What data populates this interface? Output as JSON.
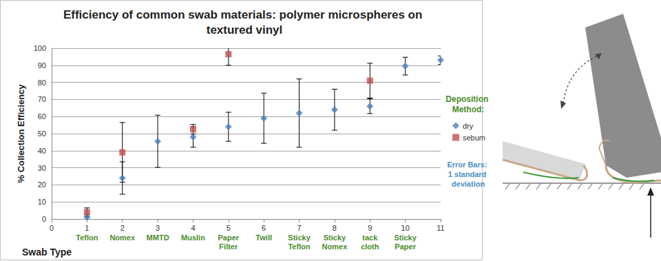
{
  "chart_data": {
    "type": "scatter",
    "title": "Efficiency of common swab materials: polymer microspheres on textured vinyl",
    "x_label": "Swab Type",
    "y_label": "% Collection Efficiency",
    "x": [
      1,
      2,
      3,
      4,
      5,
      6,
      7,
      8,
      9,
      10,
      11
    ],
    "swab_types": [
      "Teflon",
      "Nomex",
      "MMTD",
      "Muslin",
      "Paper Filter",
      "Twill",
      "Sticky Teflon",
      "Sticky Nomex",
      "tack cloth",
      "Sticky Paper",
      null
    ],
    "series": [
      {
        "name": "dry",
        "color": "#4a7ebb",
        "marker": "diamond",
        "values": [
          1,
          24,
          45.5,
          48,
          54,
          59,
          62,
          64,
          66,
          89.5,
          93
        ],
        "errors": [
          1.5,
          9.5,
          15.3,
          6,
          8.5,
          14.7,
          20,
          12,
          4.3,
          5.2,
          2.5
        ]
      },
      {
        "name": "sebum",
        "color": "#c0504d",
        "marker": "square",
        "values": [
          4,
          39,
          null,
          52.5,
          96.5,
          null,
          null,
          null,
          81,
          null,
          null
        ],
        "errors": [
          2.5,
          17.5,
          null,
          2.8,
          6.5,
          null,
          null,
          null,
          10.2,
          null,
          null
        ]
      }
    ],
    "xlim": [
      0,
      11
    ],
    "xticks": [
      0,
      1,
      2,
      3,
      4,
      5,
      6,
      7,
      8,
      9,
      10,
      11
    ],
    "ylim": [
      0,
      100
    ],
    "yticks": [
      0,
      10,
      20,
      30,
      40,
      50,
      60,
      70,
      80,
      90,
      100
    ],
    "grid": true,
    "legend": "right",
    "legend_title": "Deposition Method:",
    "note": "Error Bars: 1 standard deviation"
  }
}
